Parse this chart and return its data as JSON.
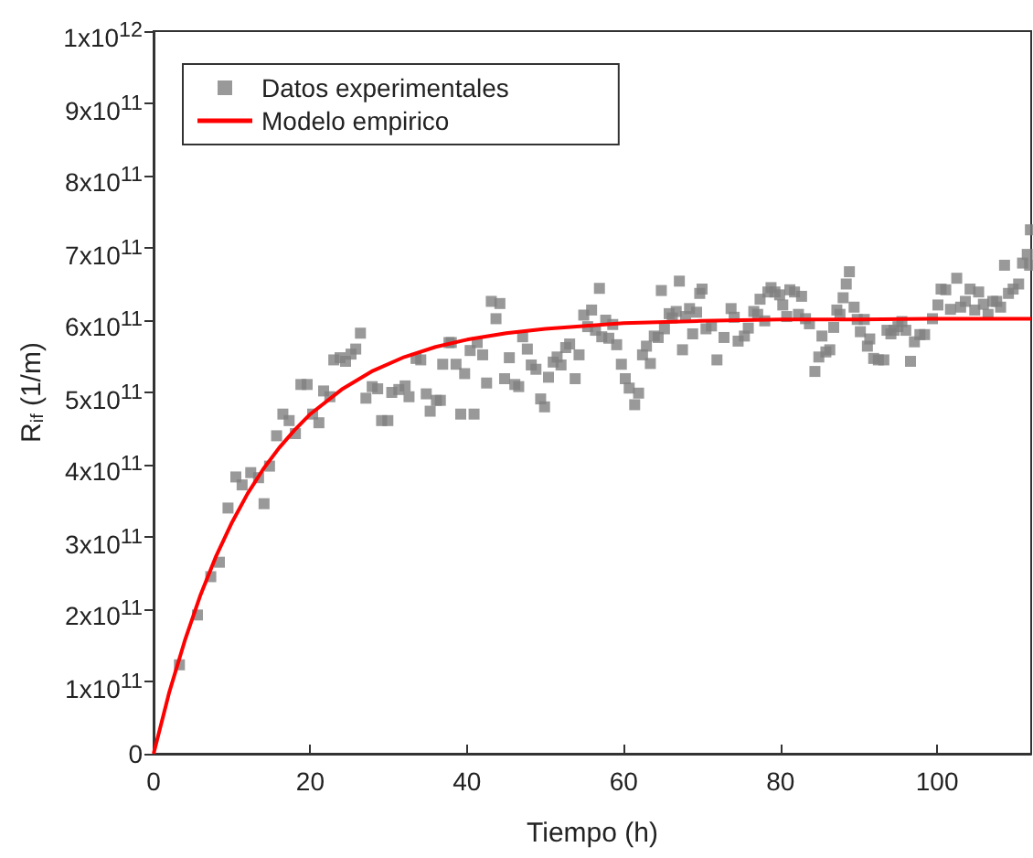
{
  "chart_data": {
    "type": "scatter",
    "xlabel": "Tiempo (h)",
    "ylabel": "R$_{if}$ (1/m)",
    "xlim": [
      0,
      112
    ],
    "xticks": [
      0,
      20,
      40,
      60,
      80,
      100
    ],
    "ylim": [
      0,
      1000000000000.0
    ],
    "yticks": [
      0,
      {
        "value": 100000000000.0,
        "label": "1x10$^{11}$"
      },
      {
        "value": 200000000000.0,
        "label": "2x10$^{11}$"
      },
      {
        "value": 300000000000.0,
        "label": "3x10$^{11}$"
      },
      {
        "value": 400000000000.0,
        "label": "4x10$^{11}$"
      },
      {
        "value": 500000000000.0,
        "label": "5x10$^{11}$"
      },
      {
        "value": 600000000000.0,
        "label": "6x10$^{11}$"
      },
      {
        "value": 700000000000.0,
        "label": "7x10$^{11}$"
      },
      {
        "value": 800000000000.0,
        "label": "8x10$^{11}$"
      },
      {
        "value": 900000000000.0,
        "label": "9x10$^{11}$"
      },
      {
        "value": 1000000000000.0,
        "label": "1x10$^{12}$"
      }
    ],
    "grid": false,
    "legend": "top left",
    "marker": "square",
    "series": [
      {
        "name": "Datos experimentales",
        "type": "scatter",
        "color": "#808080",
        "x": [
          3.3,
          5.6,
          7.3,
          8.4,
          9.5,
          10.5,
          11.3,
          12.4,
          13.4,
          14.1,
          14.8,
          15.7,
          16.5,
          17.3,
          18.1,
          18.8,
          19.6,
          20.3,
          21.1,
          21.7,
          22.5,
          23.0,
          23.8,
          24.5,
          25.2,
          25.8,
          26.4,
          27.1,
          27.9,
          28.6,
          29.1,
          29.9,
          30.4,
          31.3,
          32.1,
          32.6,
          33.5,
          34.1,
          34.8,
          35.3,
          36.1,
          36.6,
          36.9,
          37.7,
          38.0,
          38.6,
          39.2,
          39.7,
          40.4,
          40.9,
          41.3,
          42.0,
          42.5,
          43.1,
          43.7,
          44.2,
          44.8,
          45.4,
          46.1,
          46.6,
          47.1,
          47.7,
          48.2,
          48.8,
          49.4,
          49.9,
          50.4,
          51.0,
          51.5,
          52.0,
          52.6,
          53.1,
          53.8,
          54.3,
          54.9,
          55.4,
          55.9,
          56.4,
          56.9,
          57.2,
          57.7,
          58.1,
          58.6,
          59.1,
          59.7,
          60.2,
          60.7,
          61.4,
          61.9,
          62.4,
          62.9,
          63.4,
          63.9,
          64.4,
          64.8,
          65.2,
          65.8,
          66.2,
          66.7,
          67.1,
          67.5,
          67.9,
          68.4,
          68.8,
          69.3,
          69.7,
          70.0,
          70.5,
          71.2,
          71.9,
          72.8,
          73.7,
          74.1,
          74.6,
          75.4,
          75.9,
          76.6,
          77.1,
          77.4,
          78.0,
          78.4,
          78.8,
          79.3,
          79.9,
          80.3,
          80.8,
          81.2,
          81.8,
          82.3,
          82.7,
          83.2,
          83.7,
          84.4,
          84.9,
          85.3,
          85.8,
          86.3,
          86.8,
          87.2,
          87.6,
          88.0,
          88.4,
          88.8,
          89.4,
          89.8,
          90.2,
          90.7,
          91.1,
          91.4,
          91.9,
          92.5,
          93.2,
          93.6,
          94.1,
          94.5,
          95.0,
          95.5,
          96.0,
          96.6,
          97.1,
          97.8,
          98.4,
          99.4,
          100.1,
          100.5,
          101.1,
          101.7,
          102.5,
          103.0,
          103.6,
          104.2,
          104.8,
          105.3,
          105.9,
          106.5,
          107.1,
          107.6,
          108.1,
          108.6,
          109.1,
          109.7,
          110.4,
          110.9,
          111.5,
          111.8,
          111.9
        ],
        "values": [
          123000000000.0,
          192000000000.0,
          245000000000.0,
          265000000000.0,
          340000000000.0,
          383000000000.0,
          372000000000.0,
          389000000000.0,
          382000000000.0,
          346000000000.0,
          398000000000.0,
          440000000000.0,
          470000000000.0,
          461000000000.0,
          443000000000.0,
          511000000000.0,
          511000000000.0,
          470000000000.0,
          458000000000.0,
          502000000000.0,
          494000000000.0,
          545000000000.0,
          548000000000.0,
          543000000000.0,
          553000000000.0,
          560000000000.0,
          582000000000.0,
          492000000000.0,
          508000000000.0,
          505000000000.0,
          461000000000.0,
          461000000000.0,
          500000000000.0,
          504000000000.0,
          509000000000.0,
          494000000000.0,
          547000000000.0,
          545000000000.0,
          498000000000.0,
          474000000000.0,
          489000000000.0,
          489000000000.0,
          539000000000.0,
          569000000000.0,
          569000000000.0,
          539000000000.0,
          470000000000.0,
          526000000000.0,
          558000000000.0,
          470000000000.0,
          569000000000.0,
          552000000000.0,
          513000000000.0,
          626000000000.0,
          602000000000.0,
          623000000000.0,
          519000000000.0,
          548000000000.0,
          511000000000.0,
          508000000000.0,
          577000000000.0,
          560000000000.0,
          538000000000.0,
          532000000000.0,
          491000000000.0,
          480000000000.0,
          521000000000.0,
          542000000000.0,
          549000000000.0,
          538000000000.0,
          562000000000.0,
          567000000000.0,
          519000000000.0,
          552000000000.0,
          607000000000.0,
          591000000000.0,
          614000000000.0,
          586000000000.0,
          644000000000.0,
          577000000000.0,
          600000000000.0,
          575000000000.0,
          594000000000.0,
          566000000000.0,
          539000000000.0,
          519000000000.0,
          506000000000.0,
          483000000000.0,
          499000000000.0,
          552000000000.0,
          564000000000.0,
          540000000000.0,
          578000000000.0,
          576000000000.0,
          641000000000.0,
          588000000000.0,
          609000000000.0,
          603000000000.0,
          612000000000.0,
          654000000000.0,
          559000000000.0,
          605000000000.0,
          616000000000.0,
          581000000000.0,
          611000000000.0,
          637000000000.0,
          643000000000.0,
          588000000000.0,
          592000000000.0,
          545000000000.0,
          576000000000.0,
          616000000000.0,
          604000000000.0,
          571000000000.0,
          578000000000.0,
          589000000000.0,
          612000000000.0,
          608000000000.0,
          629000000000.0,
          599000000000.0,
          639000000000.0,
          645000000000.0,
          639000000000.0,
          635000000000.0,
          621000000000.0,
          605000000000.0,
          642000000000.0,
          639000000000.0,
          608000000000.0,
          633000000000.0,
          602000000000.0,
          595000000000.0,
          529000000000.0,
          549000000000.0,
          578000000000.0,
          556000000000.0,
          559000000000.0,
          590000000000.0,
          614000000000.0,
          608000000000.0,
          631000000000.0,
          650000000000.0,
          667000000000.0,
          618000000000.0,
          601000000000.0,
          584000000000.0,
          601000000000.0,
          564000000000.0,
          574000000000.0,
          547000000000.0,
          545000000000.0,
          545000000000.0,
          586000000000.0,
          581000000000.0,
          586000000000.0,
          591000000000.0,
          598000000000.0,
          586000000000.0,
          543000000000.0,
          570000000000.0,
          580000000000.0,
          580000000000.0,
          602000000000.0,
          621000000000.0,
          643000000000.0,
          642000000000.0,
          615000000000.0,
          658000000000.0,
          618000000000.0,
          626000000000.0,
          643000000000.0,
          614000000000.0,
          639000000000.0,
          622000000000.0,
          608000000000.0,
          626000000000.0,
          626000000000.0,
          618000000000.0,
          676000000000.0,
          637000000000.0,
          643000000000.0,
          650000000000.0,
          679000000000.0,
          691000000000.0,
          676000000000.0,
          725000000000.0
        ]
      },
      {
        "name": "Modelo empirico",
        "type": "line",
        "color": "#ff0000",
        "marker": "none",
        "line_style": "solid",
        "x": [
          0,
          2,
          4,
          6,
          8,
          10,
          12,
          14,
          16,
          18,
          20,
          24,
          28,
          32,
          36,
          40,
          45,
          50,
          60,
          70,
          80,
          90,
          100,
          112
        ],
        "values": [
          0,
          85000000000.0,
          157000000000.0,
          220000000000.0,
          274000000000.0,
          320000000000.0,
          360000000000.0,
          394000000000.0,
          423000000000.0,
          448000000000.0,
          470000000000.0,
          504000000000.0,
          530000000000.0,
          549000000000.0,
          563000000000.0,
          573000000000.0,
          582000000000.0,
          588000000000.0,
          596000000000.0,
          599000000000.0,
          601000000000.0,
          601000000000.0,
          602000000000.0,
          602000000000.0
        ]
      }
    ]
  }
}
